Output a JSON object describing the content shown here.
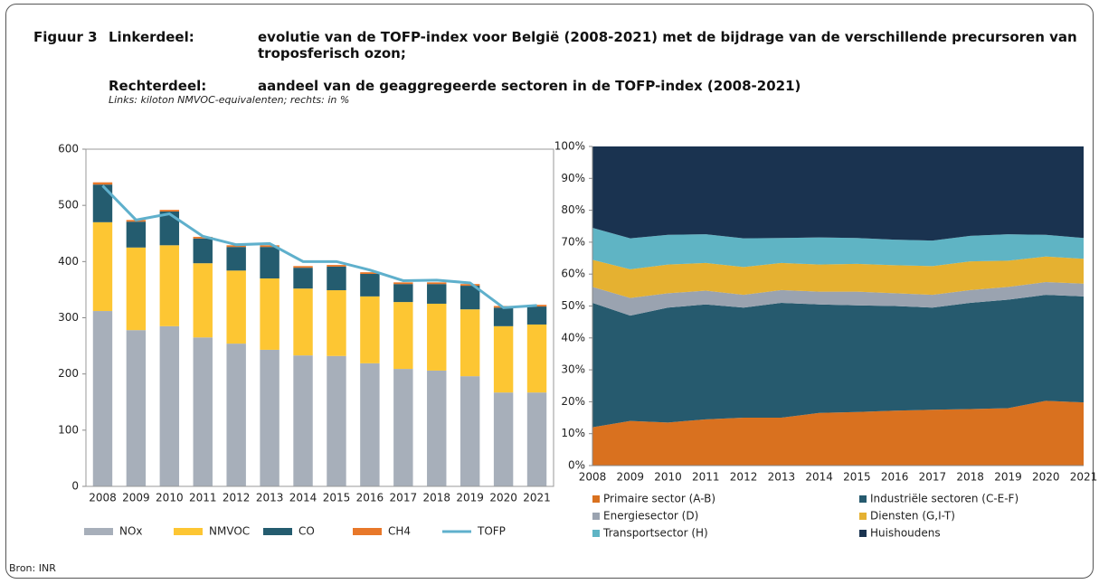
{
  "header": {
    "figure": "Figuur 3",
    "left_label": "Linkerdeel:",
    "left_text": "evolutie van de TOFP-index voor België (2008-2021) met de bijdrage van de verschillende precursoren van troposferisch ozon;",
    "right_label": "Rechterdeel:",
    "right_text": "aandeel van de geaggregeerde sectoren in de TOFP-index (2008-2021)",
    "subtitle": "Links: kiloton NMVOC-equivalenten; rechts: in %"
  },
  "chart_data": [
    {
      "type": "bar",
      "stacked": true,
      "legend": "bottom",
      "categories": [
        "2008",
        "2009",
        "2010",
        "2011",
        "2012",
        "2013",
        "2014",
        "2015",
        "2016",
        "2017",
        "2018",
        "2019",
        "2020",
        "2021"
      ],
      "ylim": [
        0,
        600
      ],
      "yticks": [
        0,
        100,
        200,
        300,
        400,
        500,
        600
      ],
      "series": [
        {
          "name": "NOx",
          "color": "#a7afba",
          "values": [
            312,
            278,
            285,
            265,
            254,
            243,
            233,
            232,
            219,
            209,
            206,
            196,
            167,
            167
          ]
        },
        {
          "name": "NMVOC",
          "color": "#fdc633",
          "values": [
            158,
            147,
            144,
            132,
            130,
            127,
            119,
            117,
            119,
            119,
            119,
            119,
            118,
            121
          ]
        },
        {
          "name": "CO",
          "color": "#245c6f",
          "values": [
            67,
            46,
            60,
            44,
            42,
            56,
            37,
            42,
            40,
            32,
            35,
            42,
            33,
            32
          ]
        },
        {
          "name": "CH4",
          "color": "#e8782a",
          "values": [
            4,
            3,
            3,
            3,
            3,
            3,
            3,
            3,
            3,
            3,
            3,
            3,
            3,
            3
          ]
        },
        {
          "name": "TOFP",
          "type": "line",
          "color": "#5fb0cc",
          "values": [
            535,
            474,
            485,
            445,
            430,
            432,
            400,
            400,
            385,
            366,
            367,
            362,
            318,
            322
          ]
        }
      ]
    },
    {
      "type": "area",
      "stacked": true,
      "legend": "bottom",
      "categories": [
        "2008",
        "2009",
        "2010",
        "2011",
        "2012",
        "2013",
        "2014",
        "2015",
        "2016",
        "2017",
        "2018",
        "2019",
        "2020",
        "2021"
      ],
      "ylim": [
        0,
        100
      ],
      "yticks": [
        {
          "value": 0,
          "label": "0%"
        },
        {
          "value": 10,
          "label": "10%"
        },
        {
          "value": 20,
          "label": "20%"
        },
        {
          "value": 30,
          "label": "30%"
        },
        {
          "value": 40,
          "label": "40%"
        },
        {
          "value": 50,
          "label": "50%"
        },
        {
          "value": 60,
          "label": "60%"
        },
        {
          "value": 70,
          "label": "70%"
        },
        {
          "value": 80,
          "label": "80%"
        },
        {
          "value": 90,
          "label": "90%"
        },
        {
          "value": 100,
          "label": "100%"
        }
      ],
      "series": [
        {
          "name": "Primaire sector (A-B)",
          "color": "#d9711f",
          "values": [
            12,
            14,
            13.5,
            14.5,
            15,
            15,
            16.5,
            16.8,
            17.2,
            17.5,
            17.7,
            18,
            20.3,
            19.8
          ]
        },
        {
          "name": "Industriële sectoren (C-E-F)",
          "color": "#265a6e",
          "values": [
            39,
            33,
            36,
            36,
            34.5,
            36,
            34,
            33.4,
            32.8,
            32,
            33.3,
            34,
            33.2,
            33.2
          ]
        },
        {
          "name": "Energiesector (D)",
          "color": "#9aa3b0",
          "values": [
            5,
            5.5,
            4.5,
            4.3,
            4,
            4,
            4,
            4.3,
            4,
            4,
            4,
            4,
            4,
            4
          ]
        },
        {
          "name": "Diensten (G,I-T)",
          "color": "#e5b131",
          "values": [
            8.5,
            9,
            9,
            8.7,
            8.7,
            8.5,
            8.5,
            8.7,
            8.8,
            9,
            9,
            8.2,
            8,
            7.8
          ]
        },
        {
          "name": "Transportsector (H)",
          "color": "#5fb4c4",
          "values": [
            10,
            9.7,
            9.3,
            9,
            9,
            7.8,
            8.5,
            8.1,
            8,
            8,
            8,
            8.3,
            6.8,
            6.5
          ]
        },
        {
          "name": "Huishoudens",
          "color": "#1a3350",
          "values": [
            25.5,
            28.8,
            27.7,
            27.5,
            28.8,
            28.7,
            28.5,
            28.7,
            29.2,
            29.5,
            28,
            27.5,
            27.7,
            28.7
          ]
        }
      ]
    }
  ],
  "source": "Bron: INR"
}
